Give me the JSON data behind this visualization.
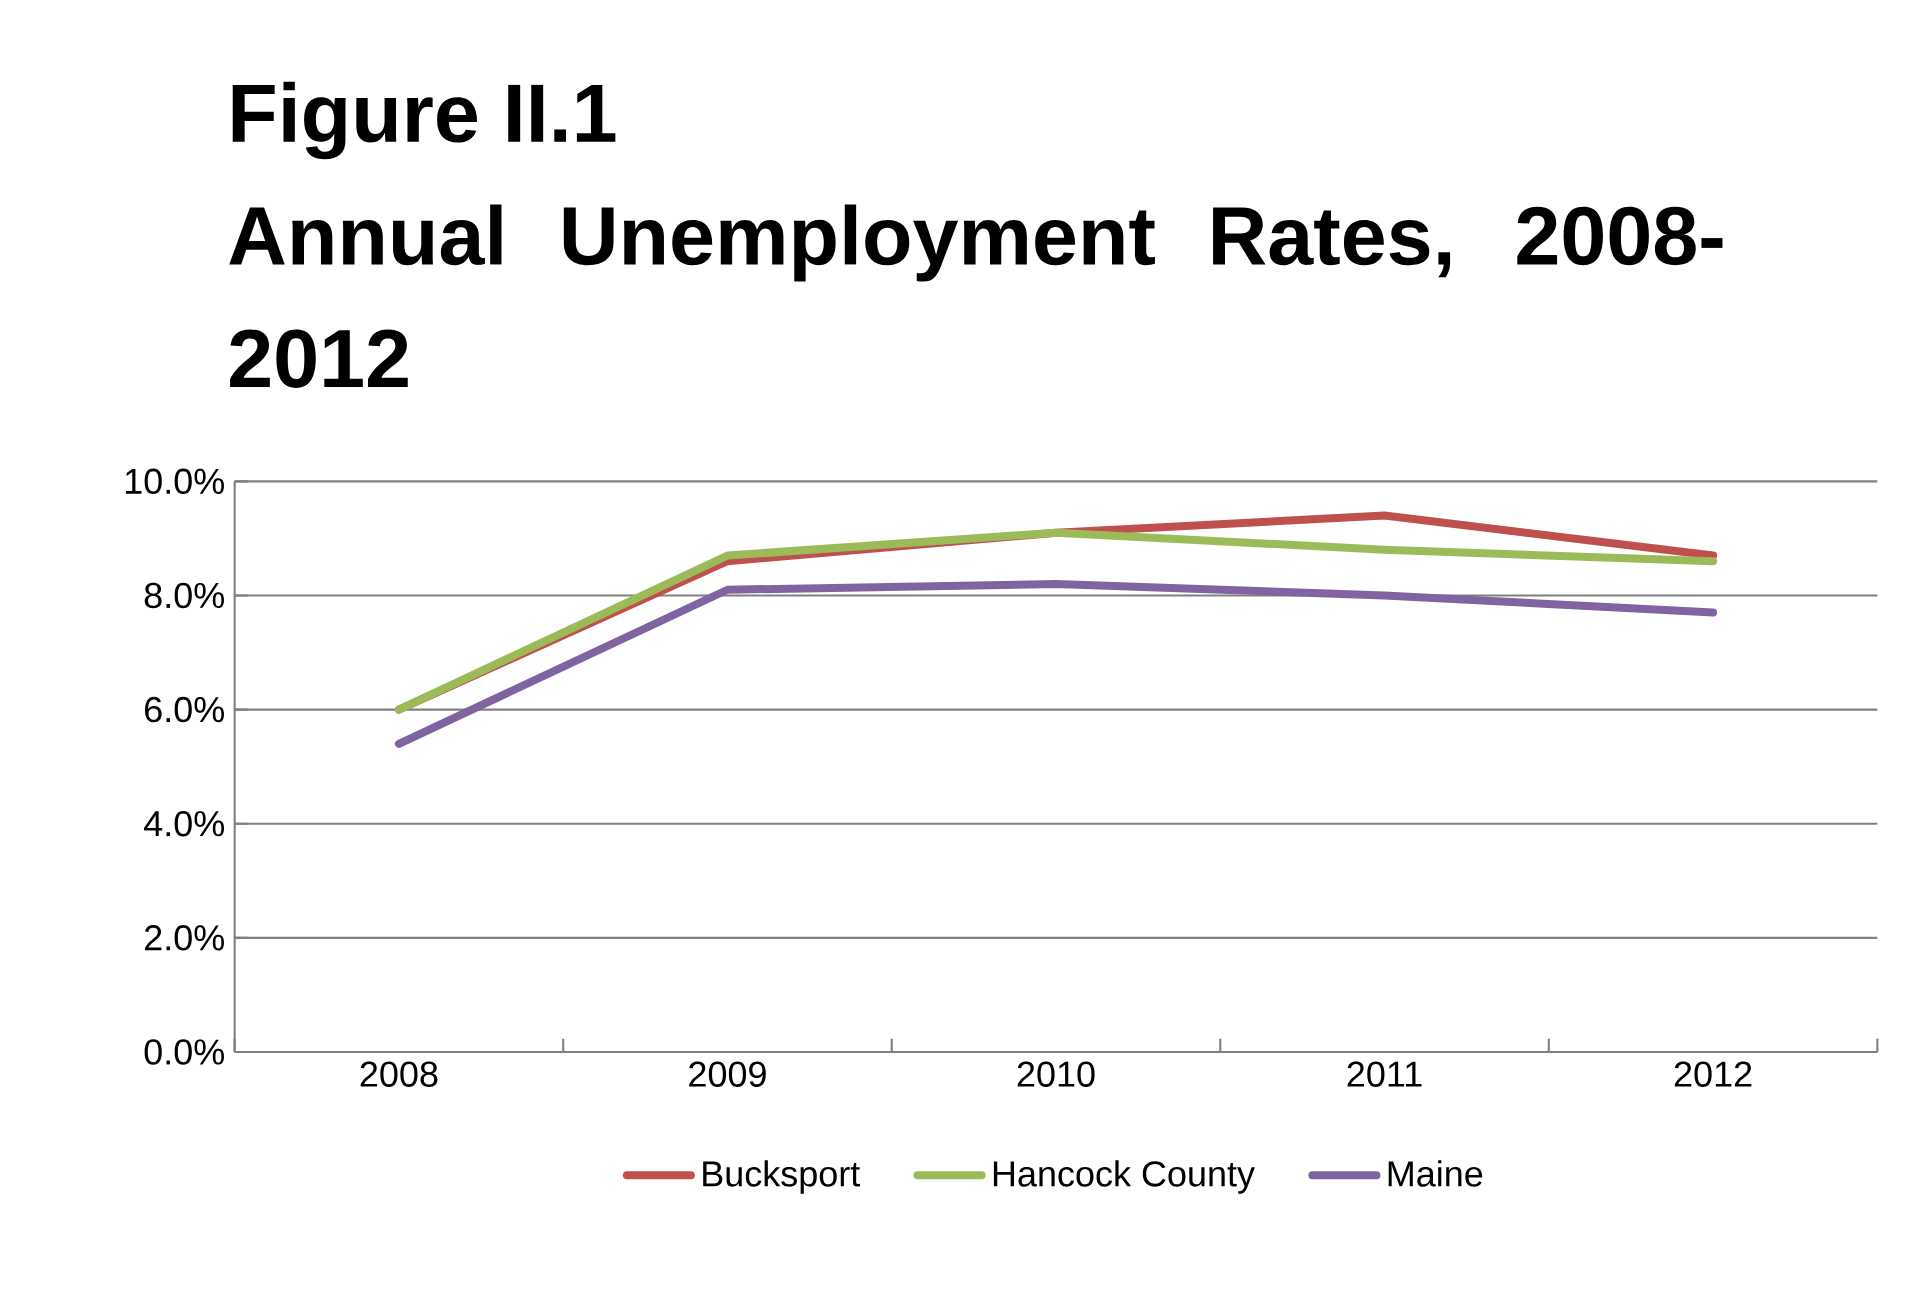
{
  "chart_data": {
    "type": "line",
    "title": "Figure II.1",
    "subtitle": "Annual Unemployment Rates, 2008-2012",
    "categories": [
      "2008",
      "2009",
      "2010",
      "2011",
      "2012"
    ],
    "series": [
      {
        "name": "Bucksport",
        "color": "#c0504d",
        "values": [
          6.0,
          8.6,
          9.1,
          9.4,
          8.7
        ]
      },
      {
        "name": "Hancock County",
        "color": "#9bbb59",
        "values": [
          6.0,
          8.7,
          9.1,
          8.8,
          8.6
        ]
      },
      {
        "name": "Maine",
        "color": "#8064a2",
        "values": [
          5.4,
          8.1,
          8.2,
          8.0,
          7.7
        ]
      }
    ],
    "ylim": [
      0,
      10
    ],
    "yticks": [
      {
        "value": 0,
        "label": "0.0%"
      },
      {
        "value": 2,
        "label": "2.0%"
      },
      {
        "value": 4,
        "label": "4.0%"
      },
      {
        "value": 6,
        "label": "6.0%"
      },
      {
        "value": 8,
        "label": "8.0%"
      },
      {
        "value": 10,
        "label": "10.0%"
      }
    ],
    "grid": "y",
    "legend": "bottom",
    "marker": "none",
    "line_style": "solid"
  }
}
